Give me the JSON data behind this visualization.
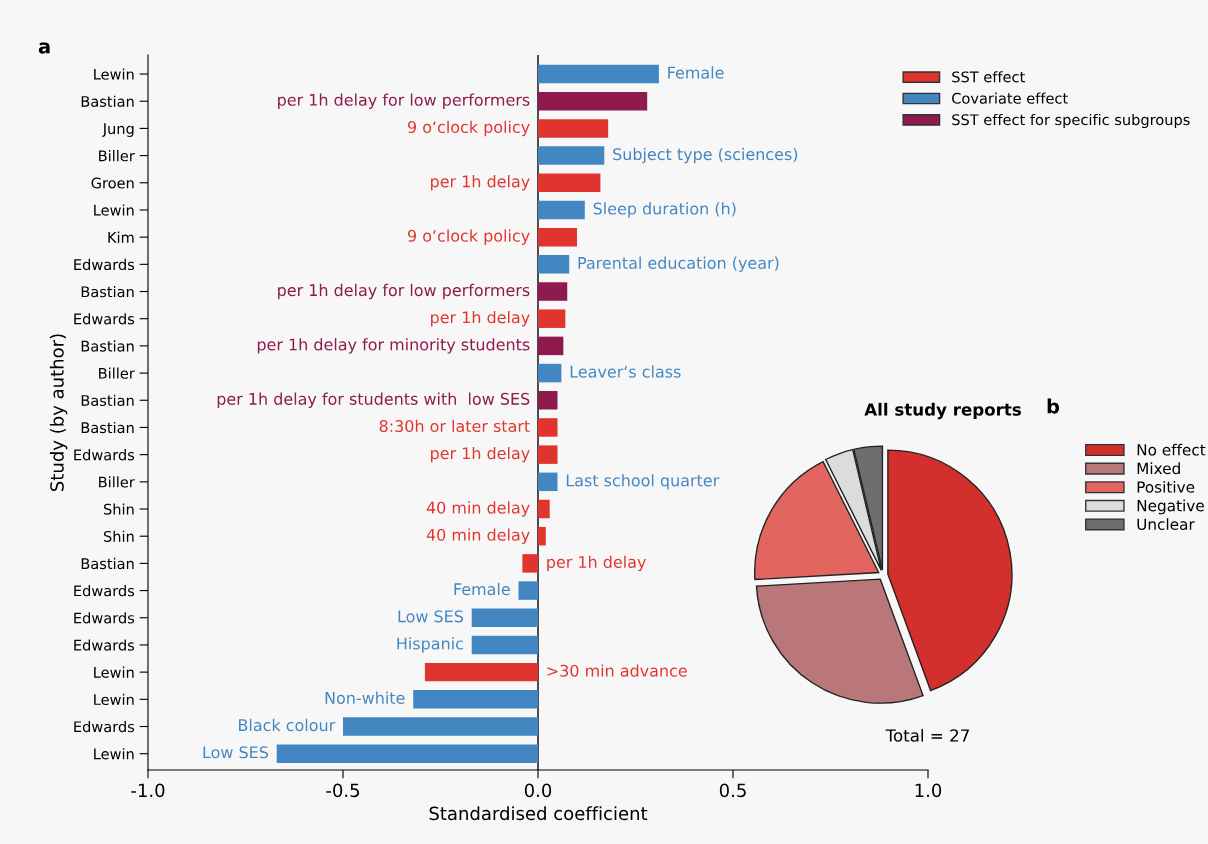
{
  "chart_data": [
    {
      "type": "bar",
      "orientation": "horizontal",
      "xlabel": "Standardised coefficient",
      "ylabel": "Study (by author)",
      "annotations": [
        "a",
        "Female",
        "per 1h delay for low performers",
        "9 o‘clock policy",
        "Subject type (sciences)",
        "per 1h delay",
        "Sleep duration (h)",
        "9 o‘clock policy",
        "Parental education (year)",
        "per 1h delay for low performers",
        "per 1h delay",
        "per 1h delay for minority students",
        "Leaver‘s class",
        "per 1h delay for students with  low SES",
        "8:30h or later start",
        "per 1h delay",
        "Last school quarter",
        "40 min delay",
        "40 min delay",
        "per 1h delay",
        "Female",
        "Low SES",
        "Hispanic",
        ">30 min advance",
        "Non-white",
        "Black colour",
        "Low SES"
      ],
      "categories": [
        "Lewin",
        "Bastian",
        "Jung",
        "Biller",
        "Groen",
        "Lewin",
        "Kim",
        "Edwards",
        "Bastian",
        "Edwards",
        "Bastian",
        "Biller",
        "Bastian",
        "Bastian",
        "Edwards",
        "Biller",
        "Shin",
        "Shin",
        "Bastian",
        "Edwards",
        "Edwards",
        "Edwards",
        "Lewin",
        "Lewin",
        "Edwards",
        "Lewin"
      ],
      "series": [
        {
          "name": "SST effect",
          "color": "#e0352f",
          "values": [
            null,
            null,
            0.18,
            null,
            0.16,
            null,
            0.1,
            null,
            null,
            0.07,
            null,
            null,
            null,
            0.05,
            0.05,
            null,
            0.03,
            0.02,
            -0.04,
            null,
            null,
            null,
            -0.29,
            null,
            null,
            null
          ]
        },
        {
          "name": "Covariate effect",
          "color": "#4287c2",
          "values": [
            0.31,
            null,
            null,
            0.17,
            null,
            0.12,
            null,
            0.08,
            null,
            null,
            null,
            0.06,
            null,
            null,
            null,
            0.05,
            null,
            null,
            null,
            -0.05,
            -0.17,
            -0.17,
            null,
            -0.32,
            -0.5,
            -0.67
          ]
        },
        {
          "name": "SST effect for specific subgroups",
          "color": "#8e1a4e",
          "values": [
            null,
            0.28,
            null,
            null,
            null,
            null,
            null,
            null,
            0.075,
            null,
            0.065,
            null,
            0.05,
            null,
            null,
            null,
            null,
            null,
            null,
            null,
            null,
            null,
            null,
            null,
            null,
            null
          ]
        }
      ],
      "xlim": [
        -1,
        1
      ],
      "xticks": [
        {
          "value": -1,
          "label": "-1.0"
        },
        {
          "value": -0.5,
          "label": "-0.5"
        },
        {
          "value": 0,
          "label": "0.0"
        },
        {
          "value": 0.5,
          "label": "0.5"
        },
        {
          "value": 1,
          "label": "1.0"
        }
      ],
      "legend": "top right"
    },
    {
      "type": "pie",
      "title": "All study reports",
      "annotations": [
        "b",
        "Total = 27"
      ],
      "categories": [
        "No effect",
        "Mixed",
        "Positive",
        "Negative",
        "Unclear"
      ],
      "values": [
        44.4,
        29.7,
        18.5,
        3.7,
        3.7
      ],
      "colors": [
        "#d32f2d",
        "#b9777a",
        "#e2665f",
        "#dcdcdc",
        "#6e6e6e"
      ],
      "legend": "right"
    }
  ]
}
